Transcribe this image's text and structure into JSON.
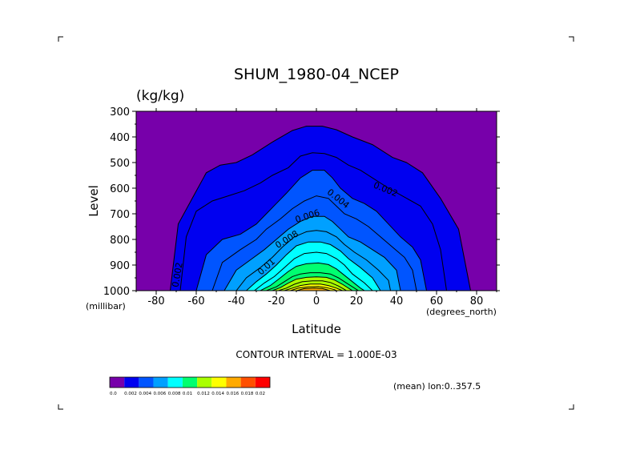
{
  "chart_data": {
    "type": "contour",
    "title": "SHUM_1980-04_NCEP",
    "units": "(kg/kg)",
    "xlabel": "Latitude",
    "ylabel": "Level",
    "x_unit": "(degrees_north)",
    "y_unit": "(millibar)",
    "xlim": [
      -90,
      90
    ],
    "ylim": [
      1000,
      300
    ],
    "x_ticks": [
      "-80",
      "-60",
      "-40",
      "-20",
      "0",
      "20",
      "40",
      "60",
      "80"
    ],
    "x_tick_values": [
      -80,
      -60,
      -40,
      -20,
      0,
      20,
      40,
      60,
      80
    ],
    "y_ticks": [
      "300",
      "400",
      "500",
      "600",
      "700",
      "800",
      "900",
      "1000"
    ],
    "y_tick_values": [
      300,
      400,
      500,
      600,
      700,
      800,
      900,
      1000
    ],
    "contour_interval_text": "CONTOUR INTERVAL = 1.000E-03",
    "footer_text": "(mean) lon:0..357.5",
    "contour_labels": [
      {
        "text": "0.002",
        "lat": -68,
        "p": 940,
        "rot": -80
      },
      {
        "text": "0.002",
        "lat": 34,
        "p": 615,
        "rot": 22
      },
      {
        "text": "0.004",
        "lat": 10,
        "p": 650,
        "rot": 38
      },
      {
        "text": "0.006",
        "lat": -4,
        "p": 720,
        "rot": -18
      },
      {
        "text": "0.008",
        "lat": -14,
        "p": 810,
        "rot": -32
      },
      {
        "text": "0.01",
        "lat": -24,
        "p": 915,
        "rot": -42
      }
    ],
    "colorbar": {
      "colors": [
        "#7700aa",
        "#0000f0",
        "#0055ff",
        "#00a0ff",
        "#00ffff",
        "#00ff70",
        "#aaff00",
        "#ffff00",
        "#ffaa00",
        "#ff5000",
        "#ff0000"
      ],
      "labels": [
        "0.0",
        "0.002",
        "0.004",
        "0.006",
        "0.008",
        "0.01",
        "0.012",
        "0.014",
        "0.016",
        "0.018",
        "0.02"
      ]
    },
    "levels": [
      {
        "value": 0.002,
        "pts": [
          [
            -73,
            1000
          ],
          [
            -69,
            740
          ],
          [
            -62,
            640
          ],
          [
            -55,
            540
          ],
          [
            -48,
            510
          ],
          [
            -40,
            500
          ],
          [
            -32,
            470
          ],
          [
            -22,
            420
          ],
          [
            -12,
            375
          ],
          [
            -5,
            358
          ],
          [
            3,
            358
          ],
          [
            10,
            372
          ],
          [
            18,
            400
          ],
          [
            28,
            430
          ],
          [
            38,
            480
          ],
          [
            45,
            500
          ],
          [
            53,
            540
          ],
          [
            62,
            640
          ],
          [
            71,
            760
          ],
          [
            77,
            1000
          ]
        ]
      },
      {
        "value": 0.003,
        "pts": [
          [
            -68,
            1000
          ],
          [
            -65,
            790
          ],
          [
            -60,
            690
          ],
          [
            -52,
            650
          ],
          [
            -44,
            630
          ],
          [
            -36,
            610
          ],
          [
            -28,
            580
          ],
          [
            -22,
            550
          ],
          [
            -14,
            520
          ],
          [
            -8,
            475
          ],
          [
            -2,
            462
          ],
          [
            4,
            465
          ],
          [
            10,
            480
          ],
          [
            16,
            510
          ],
          [
            22,
            530
          ],
          [
            28,
            560
          ],
          [
            36,
            600
          ],
          [
            44,
            635
          ],
          [
            52,
            670
          ],
          [
            58,
            740
          ],
          [
            62,
            840
          ],
          [
            65,
            1000
          ]
        ]
      },
      {
        "value": 0.004,
        "pts": [
          [
            -60,
            1000
          ],
          [
            -55,
            860
          ],
          [
            -47,
            800
          ],
          [
            -38,
            780
          ],
          [
            -30,
            740
          ],
          [
            -25,
            700
          ],
          [
            -20,
            660
          ],
          [
            -15,
            620
          ],
          [
            -8,
            560
          ],
          [
            -2,
            530
          ],
          [
            4,
            530
          ],
          [
            8,
            560
          ],
          [
            12,
            600
          ],
          [
            18,
            640
          ],
          [
            24,
            660
          ],
          [
            30,
            690
          ],
          [
            36,
            740
          ],
          [
            42,
            790
          ],
          [
            48,
            830
          ],
          [
            52,
            880
          ],
          [
            55,
            1000
          ]
        ]
      },
      {
        "value": 0.005,
        "pts": [
          [
            -52,
            1000
          ],
          [
            -47,
            890
          ],
          [
            -38,
            840
          ],
          [
            -30,
            800
          ],
          [
            -25,
            760
          ],
          [
            -18,
            720
          ],
          [
            -12,
            680
          ],
          [
            -6,
            650
          ],
          [
            0,
            630
          ],
          [
            6,
            640
          ],
          [
            10,
            670
          ],
          [
            14,
            700
          ],
          [
            20,
            720
          ],
          [
            26,
            750
          ],
          [
            32,
            790
          ],
          [
            38,
            830
          ],
          [
            44,
            870
          ],
          [
            48,
            920
          ],
          [
            50,
            1000
          ]
        ]
      },
      {
        "value": 0.006,
        "pts": [
          [
            -46,
            1000
          ],
          [
            -40,
            920
          ],
          [
            -33,
            880
          ],
          [
            -26,
            840
          ],
          [
            -20,
            800
          ],
          [
            -14,
            760
          ],
          [
            -8,
            730
          ],
          [
            -2,
            710
          ],
          [
            4,
            710
          ],
          [
            8,
            730
          ],
          [
            12,
            760
          ],
          [
            16,
            790
          ],
          [
            22,
            810
          ],
          [
            28,
            840
          ],
          [
            34,
            870
          ],
          [
            40,
            920
          ],
          [
            42,
            1000
          ]
        ]
      },
      {
        "value": 0.007,
        "pts": [
          [
            -40,
            1000
          ],
          [
            -35,
            950
          ],
          [
            -28,
            910
          ],
          [
            -22,
            870
          ],
          [
            -17,
            830
          ],
          [
            -11,
            790
          ],
          [
            -5,
            770
          ],
          [
            0,
            765
          ],
          [
            5,
            770
          ],
          [
            10,
            790
          ],
          [
            14,
            820
          ],
          [
            19,
            850
          ],
          [
            25,
            880
          ],
          [
            31,
            920
          ],
          [
            36,
            960
          ],
          [
            37,
            1000
          ]
        ]
      },
      {
        "value": 0.008,
        "pts": [
          [
            -35,
            1000
          ],
          [
            -30,
            965
          ],
          [
            -25,
            935
          ],
          [
            -20,
            900
          ],
          [
            -15,
            860
          ],
          [
            -10,
            825
          ],
          [
            -4,
            810
          ],
          [
            2,
            810
          ],
          [
            7,
            820
          ],
          [
            12,
            845
          ],
          [
            16,
            875
          ],
          [
            22,
            910
          ],
          [
            28,
            950
          ],
          [
            32,
            1000
          ]
        ]
      },
      {
        "value": 0.009,
        "pts": [
          [
            -31,
            1000
          ],
          [
            -26,
            970
          ],
          [
            -21,
            945
          ],
          [
            -16,
            910
          ],
          [
            -11,
            875
          ],
          [
            -6,
            855
          ],
          [
            0,
            850
          ],
          [
            5,
            855
          ],
          [
            10,
            875
          ],
          [
            14,
            900
          ],
          [
            18,
            935
          ],
          [
            24,
            970
          ],
          [
            28,
            1000
          ]
        ]
      },
      {
        "value": 0.01,
        "pts": [
          [
            -28,
            1000
          ],
          [
            -23,
            980
          ],
          [
            -18,
            950
          ],
          [
            -14,
            925
          ],
          [
            -10,
            905
          ],
          [
            -5,
            895
          ],
          [
            1,
            892
          ],
          [
            6,
            898
          ],
          [
            10,
            915
          ],
          [
            14,
            940
          ],
          [
            18,
            965
          ],
          [
            22,
            990
          ],
          [
            24,
            1000
          ]
        ]
      },
      {
        "value": 0.011,
        "pts": [
          [
            -25,
            1000
          ],
          [
            -20,
            985
          ],
          [
            -16,
            965
          ],
          [
            -12,
            945
          ],
          [
            -8,
            935
          ],
          [
            -3,
            930
          ],
          [
            2,
            930
          ],
          [
            7,
            935
          ],
          [
            11,
            950
          ],
          [
            15,
            970
          ],
          [
            19,
            990
          ],
          [
            21,
            1000
          ]
        ]
      },
      {
        "value": 0.012,
        "pts": [
          [
            -22,
            1000
          ],
          [
            -18,
            988
          ],
          [
            -14,
            970
          ],
          [
            -10,
            955
          ],
          [
            -5,
            948
          ],
          [
            0,
            946
          ],
          [
            5,
            948
          ],
          [
            9,
            958
          ],
          [
            13,
            975
          ],
          [
            17,
            995
          ],
          [
            18,
            1000
          ]
        ]
      },
      {
        "value": 0.013,
        "pts": [
          [
            -19,
            1000
          ],
          [
            -15,
            990
          ],
          [
            -11,
            975
          ],
          [
            -7,
            965
          ],
          [
            -2,
            962
          ],
          [
            3,
            962
          ],
          [
            7,
            968
          ],
          [
            11,
            982
          ],
          [
            14,
            995
          ],
          [
            15,
            1000
          ]
        ]
      },
      {
        "value": 0.014,
        "pts": [
          [
            -16,
            1000
          ],
          [
            -12,
            990
          ],
          [
            -8,
            980
          ],
          [
            -3,
            974
          ],
          [
            2,
            974
          ],
          [
            6,
            980
          ],
          [
            10,
            990
          ],
          [
            13,
            1000
          ]
        ]
      },
      {
        "value": 0.015,
        "pts": [
          [
            -13,
            1000
          ],
          [
            -9,
            990
          ],
          [
            -4,
            985
          ],
          [
            1,
            984
          ],
          [
            5,
            988
          ],
          [
            9,
            996
          ],
          [
            10,
            1000
          ]
        ]
      },
      {
        "value": 0.016,
        "pts": [
          [
            -10,
            1000
          ],
          [
            -6,
            992
          ],
          [
            -1,
            990
          ],
          [
            3,
            992
          ],
          [
            7,
            1000
          ]
        ]
      }
    ]
  }
}
